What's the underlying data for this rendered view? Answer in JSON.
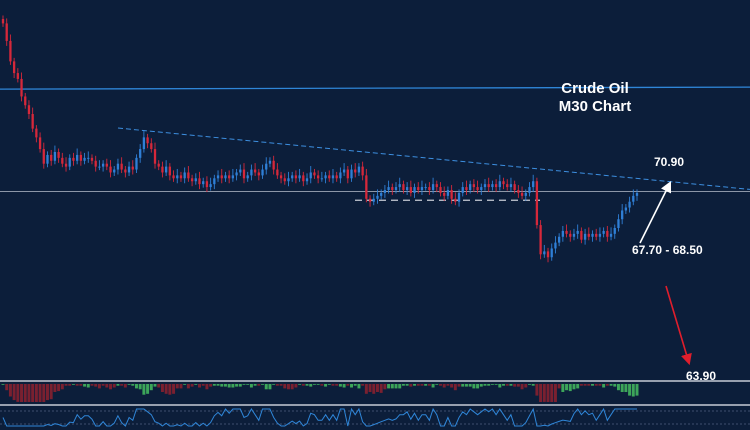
{
  "chart_data": {
    "type": "candlestick",
    "title_line1": "Crude Oil",
    "title_line2": "M30  Chart",
    "ylim": [
      62.0,
      75.0
    ],
    "colors": {
      "background": "#0c1e3a",
      "bull": "#2f7fd6",
      "bear": "#d6283a",
      "resistance": "#2f86d8",
      "trendline": "#3d8fe0",
      "support": "#c7ccd6",
      "pivot": "#8d97a8",
      "up_arrow": "#ffffff",
      "down_arrow": "#e01e2c",
      "target_low_text": "#3ea0ff",
      "range_text": "#3ea0ff",
      "macd_up": "#3da55a",
      "macd_down": "#7a2030"
    },
    "resistance_level": 71.95,
    "pivot_level": 68.45,
    "support_level": 68.15,
    "trendline": {
      "from": [
        118,
        70.62
      ],
      "to": [
        750,
        68.52
      ]
    },
    "annotations": {
      "upper_target": "70.90",
      "range": "67.70 - 68.50",
      "lower_target": "63.90"
    },
    "closes": [
      74.2,
      73.6,
      72.9,
      72.5,
      72.3,
      71.7,
      71.4,
      71.1,
      70.6,
      70.3,
      69.9,
      69.4,
      69.7,
      69.5,
      69.8,
      69.6,
      69.4,
      69.3,
      69.6,
      69.5,
      69.7,
      69.5,
      69.6,
      69.6,
      69.5,
      69.3,
      69.3,
      69.4,
      69.3,
      69.1,
      69.2,
      69.4,
      69.2,
      69.1,
      69.3,
      69.2,
      69.6,
      69.9,
      70.3,
      70.1,
      69.9,
      69.4,
      69.3,
      69.1,
      69.3,
      69.0,
      68.9,
      69.0,
      68.9,
      69.1,
      68.9,
      68.8,
      68.9,
      68.7,
      68.8,
      68.6,
      68.7,
      68.9,
      69.0,
      68.9,
      69.0,
      68.9,
      69.0,
      69.1,
      69.2,
      68.9,
      69.0,
      69.2,
      69.1,
      69.0,
      69.2,
      69.4,
      69.5,
      69.2,
      69.0,
      68.9,
      68.8,
      68.9,
      69.0,
      68.9,
      69.0,
      68.8,
      68.9,
      69.1,
      69.0,
      68.9,
      68.9,
      69.0,
      68.9,
      69.0,
      68.9,
      69.1,
      69.2,
      68.9,
      69.2,
      69.1,
      69.3,
      69.0,
      68.2,
      68.1,
      68.2,
      68.3,
      68.4,
      68.5,
      68.6,
      68.5,
      68.6,
      68.7,
      68.5,
      68.6,
      68.4,
      68.6,
      68.5,
      68.6,
      68.6,
      68.5,
      68.7,
      68.6,
      68.4,
      68.3,
      68.5,
      68.2,
      68.1,
      68.4,
      68.6,
      68.5,
      68.7,
      68.6,
      68.5,
      68.6,
      68.7,
      68.6,
      68.7,
      68.6,
      68.8,
      68.7,
      68.6,
      68.7,
      68.5,
      68.4,
      68.3,
      68.4,
      68.6,
      68.8,
      67.3,
      66.3,
      66.4,
      66.2,
      66.5,
      66.7,
      66.9,
      67.1,
      67.0,
      66.9,
      67.0,
      67.1,
      66.8,
      67.0,
      66.9,
      67.0,
      66.9,
      67.0,
      67.1,
      66.9,
      67.0,
      67.2,
      67.5,
      67.8,
      67.9,
      68.1,
      68.3,
      68.4
    ]
  }
}
